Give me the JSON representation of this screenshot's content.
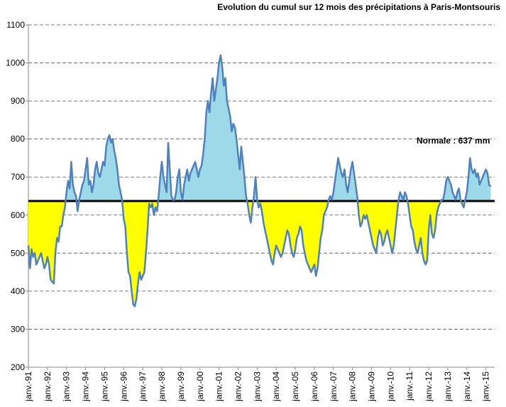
{
  "chart_data": {
    "type": "line",
    "title": "Evolution du cumul sur 12 mois des précipitations à Paris-Montsouris",
    "annotation": "Normale : 637 mm",
    "normal": 637,
    "color": "#4f81bd",
    "above_color": "#9dd9e8",
    "below_color": "#ffff00",
    "ylim": [
      200,
      1100
    ],
    "yticks": [
      200,
      300,
      400,
      500,
      600,
      700,
      800,
      900,
      1000,
      1100
    ],
    "grid": true,
    "categories": [
      "janv.-91",
      null,
      null,
      null,
      null,
      null,
      null,
      null,
      null,
      null,
      null,
      null,
      "janv.-92",
      null,
      null,
      null,
      null,
      null,
      null,
      null,
      null,
      null,
      null,
      null,
      "janv.-93",
      null,
      null,
      null,
      null,
      null,
      null,
      null,
      null,
      null,
      null,
      null,
      "janv.-94",
      null,
      null,
      null,
      null,
      null,
      null,
      null,
      null,
      null,
      null,
      null,
      "janv.-95",
      null,
      null,
      null,
      null,
      null,
      null,
      null,
      null,
      null,
      null,
      null,
      "janv.-96",
      null,
      null,
      null,
      null,
      null,
      null,
      null,
      null,
      null,
      null,
      null,
      "janv.-97",
      null,
      null,
      null,
      null,
      null,
      null,
      null,
      null,
      null,
      null,
      null,
      "janv.-98",
      null,
      null,
      null,
      null,
      null,
      null,
      null,
      null,
      null,
      null,
      null,
      "janv.-99",
      null,
      null,
      null,
      null,
      null,
      null,
      null,
      null,
      null,
      null,
      null,
      "janv.-00",
      null,
      null,
      null,
      null,
      null,
      null,
      null,
      null,
      null,
      null,
      null,
      "janv.-01",
      null,
      null,
      null,
      null,
      null,
      null,
      null,
      null,
      null,
      null,
      null,
      "janv.-02",
      null,
      null,
      null,
      null,
      null,
      null,
      null,
      null,
      null,
      null,
      null,
      "janv.-03",
      null,
      null,
      null,
      null,
      null,
      null,
      null,
      null,
      null,
      null,
      null,
      "janv.-04",
      null,
      null,
      null,
      null,
      null,
      null,
      null,
      null,
      null,
      null,
      null,
      "janv.-05",
      null,
      null,
      null,
      null,
      null,
      null,
      null,
      null,
      null,
      null,
      null,
      "janv.-06",
      null,
      null,
      null,
      null,
      null,
      null,
      null,
      null,
      null,
      null,
      null,
      "janv.-07",
      null,
      null,
      null,
      null,
      null,
      null,
      null,
      null,
      null,
      null,
      null,
      "janv.-08",
      null,
      null,
      null,
      null,
      null,
      null,
      null,
      null,
      null,
      null,
      null,
      "janv.-09",
      null,
      null,
      null,
      null,
      null,
      null,
      null,
      null,
      null,
      null,
      null,
      "janv.-10",
      null,
      null,
      null,
      null,
      null,
      null,
      null,
      null,
      null,
      null,
      null,
      "janv.-11",
      null,
      null,
      null,
      null,
      null,
      null,
      null,
      null,
      null,
      null,
      null,
      "janv.-12",
      null,
      null,
      null,
      null,
      null,
      null,
      null,
      null,
      null,
      null,
      null,
      "janv.-13",
      null,
      null,
      null,
      null,
      null,
      null,
      null,
      null,
      null,
      null,
      null,
      "janv.-14",
      null,
      null,
      null,
      null,
      null,
      null,
      null,
      null,
      null,
      null,
      null,
      "janv.-15",
      null,
      null,
      null
    ],
    "values": [
      520,
      460,
      510,
      490,
      500,
      470,
      480,
      490,
      500,
      480,
      460,
      470,
      490,
      470,
      430,
      425,
      420,
      500,
      540,
      530,
      570,
      570,
      600,
      620,
      660,
      690,
      670,
      740,
      680,
      660,
      650,
      610,
      640,
      660,
      680,
      690,
      720,
      750,
      680,
      690,
      660,
      680,
      720,
      740,
      710,
      700,
      720,
      740,
      730,
      780,
      800,
      810,
      790,
      800,
      770,
      750,
      720,
      680,
      660,
      640,
      590,
      570,
      500,
      450,
      440,
      400,
      365,
      360,
      380,
      420,
      450,
      430,
      440,
      450,
      500,
      560,
      630,
      620,
      630,
      600,
      620,
      610,
      650,
      700,
      740,
      700,
      680,
      660,
      790,
      720,
      650,
      640,
      640,
      660,
      700,
      720,
      660,
      640,
      680,
      700,
      720,
      690,
      710,
      720,
      730,
      740,
      720,
      700,
      720,
      730,
      760,
      800,
      870,
      900,
      870,
      920,
      960,
      900,
      930,
      960,
      1000,
      1020,
      990,
      940,
      960,
      900,
      880,
      860,
      820,
      840,
      830,
      800,
      760,
      720,
      780,
      740,
      700,
      650,
      630,
      600,
      580,
      620,
      650,
      700,
      640,
      620,
      630,
      610,
      580,
      560,
      540,
      520,
      500,
      480,
      470,
      500,
      520,
      510,
      500,
      490,
      500,
      520,
      540,
      560,
      550,
      520,
      500,
      490,
      510,
      540,
      550,
      570,
      560,
      520,
      500,
      480,
      470,
      460,
      450,
      460,
      470,
      440,
      460,
      500,
      540,
      560,
      600,
      610,
      620,
      640,
      650,
      640,
      660,
      690,
      720,
      750,
      730,
      710,
      700,
      720,
      680,
      660,
      690,
      720,
      740,
      710,
      680,
      650,
      600,
      570,
      580,
      600,
      590,
      600,
      580,
      560,
      540,
      520,
      510,
      500,
      540,
      560,
      550,
      520,
      530,
      550,
      560,
      540,
      520,
      500,
      520,
      560,
      600,
      640,
      660,
      650,
      640,
      660,
      650,
      630,
      600,
      570,
      560,
      530,
      510,
      500,
      520,
      540,
      500,
      480,
      470,
      480,
      560,
      600,
      550,
      540,
      560,
      600,
      620,
      630,
      640,
      640,
      660,
      690,
      700,
      690,
      680,
      660,
      650,
      640,
      660,
      670,
      640,
      630,
      620,
      640,
      660,
      700,
      750,
      720,
      710,
      720,
      700,
      710,
      680,
      690,
      700,
      710,
      720,
      710,
      680,
      675
    ]
  }
}
